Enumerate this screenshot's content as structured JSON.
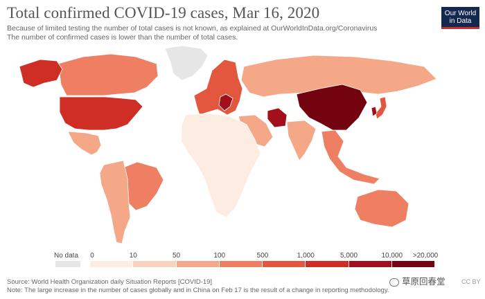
{
  "header": {
    "title": "Total confirmed COVID-19 cases, Mar 16, 2020",
    "subtitle_line1": "Because of limited testing the number of total cases is not known, as explained at OurWorldInData.org/Coronavirus",
    "subtitle_line2": "The number of confirmed cases is lower than the number of total cases.",
    "logo_line1": "Our World",
    "logo_line2": "in Data"
  },
  "legend": {
    "no_data_label": "No data",
    "no_data_color": "#e6e6e6",
    "bins": [
      {
        "from": "0",
        "to": "10",
        "color": "#fdece1"
      },
      {
        "from": "10",
        "to": "50",
        "color": "#fbd2bc"
      },
      {
        "from": "50",
        "to": "100",
        "color": "#f4a888"
      },
      {
        "from": "100",
        "to": "500",
        "color": "#ef7f62"
      },
      {
        "from": "500",
        "to": "1,000",
        "color": "#e4573f"
      },
      {
        "from": "1,000",
        "to": "5,000",
        "color": "#cf2e25"
      },
      {
        "from": "5,000",
        "to": "10,000",
        "color": "#a30f1a"
      },
      {
        "from": "10,000",
        "to": ">20,000",
        "color": "#73040f"
      }
    ]
  },
  "map": {
    "regions": [
      {
        "name": "United States",
        "color": "#cf2e25"
      },
      {
        "name": "Canada",
        "color": "#ef7f62"
      },
      {
        "name": "Greenland",
        "color": "#e6e6e6"
      },
      {
        "name": "Alaska",
        "color": "#cf2e25"
      },
      {
        "name": "Mexico",
        "color": "#f4a888"
      },
      {
        "name": "Brazil",
        "color": "#ef7f62"
      },
      {
        "name": "South America other",
        "color": "#f4a888"
      },
      {
        "name": "Europe",
        "color": "#e4573f"
      },
      {
        "name": "Italy",
        "color": "#a30f1a"
      },
      {
        "name": "Russia",
        "color": "#f4a888"
      },
      {
        "name": "China",
        "color": "#73040f"
      },
      {
        "name": "Iran",
        "color": "#a30f1a"
      },
      {
        "name": "Middle East",
        "color": "#f4a888"
      },
      {
        "name": "India",
        "color": "#f4a888"
      },
      {
        "name": "Southeast Asia",
        "color": "#ef7f62"
      },
      {
        "name": "Japan",
        "color": "#e4573f"
      },
      {
        "name": "South Korea",
        "color": "#a30f1a"
      },
      {
        "name": "Africa",
        "color": "#fdece1"
      },
      {
        "name": "Australia",
        "color": "#ef7f62"
      }
    ]
  },
  "footer": {
    "source": "Source: World Health Organization daily Situation Reports [COVID-19]",
    "note": "Note: The large increase in the number of cases globally and in China on Feb 17 is the result of a change in reporting methodology.",
    "watermark": "草原回春堂",
    "license": "CC BY"
  }
}
